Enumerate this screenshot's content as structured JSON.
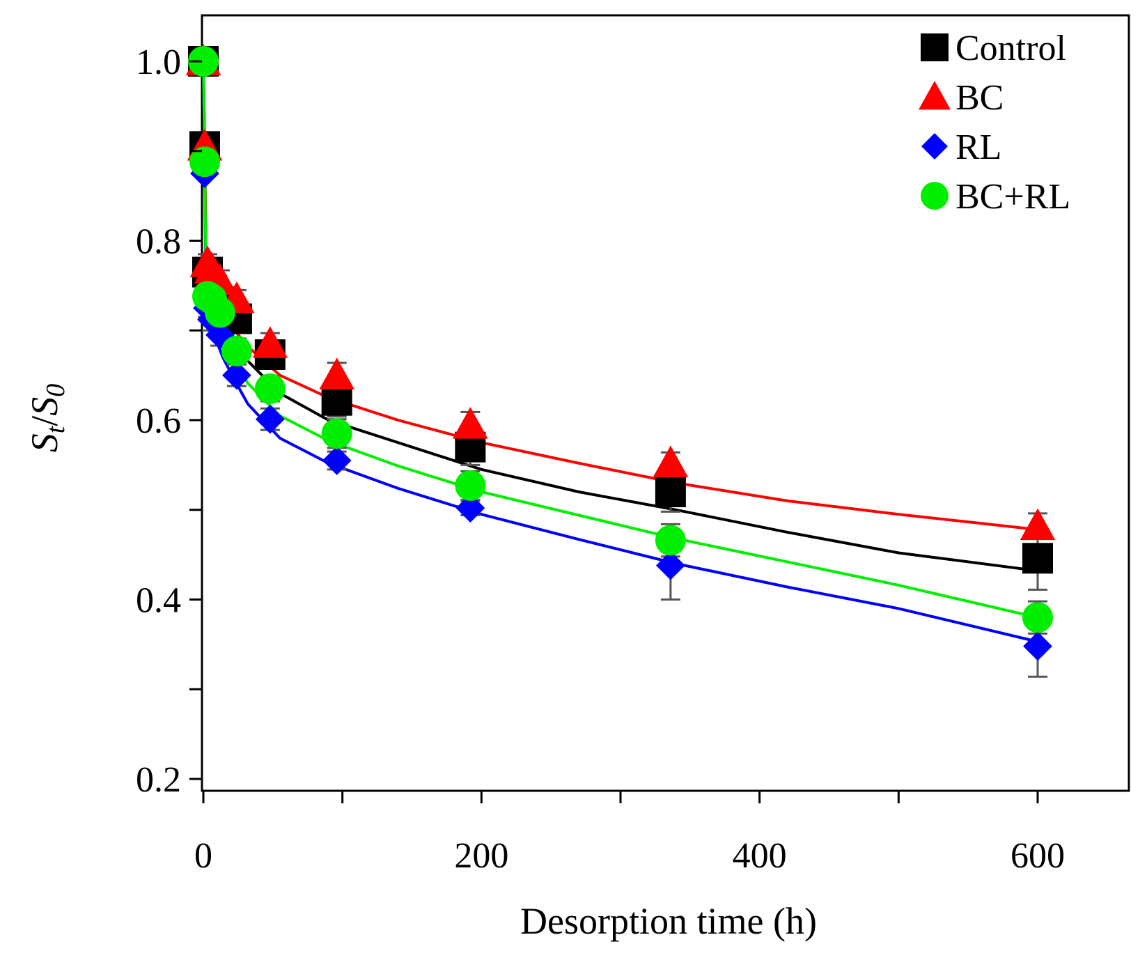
{
  "chart_data": {
    "type": "scatter",
    "xlabel": "Desorption time (h)",
    "ylabel_parts": {
      "main1": "S",
      "sub1": "t",
      "slash": "/",
      "main2": "S",
      "sub2": "0"
    },
    "xlim": [
      0,
      640
    ],
    "ylim": [
      0.2,
      1.0
    ],
    "x_ticks": [
      {
        "value": 0,
        "label": "0"
      },
      {
        "value": 200,
        "label": "200"
      },
      {
        "value": 400,
        "label": "400"
      },
      {
        "value": 600,
        "label": "600"
      }
    ],
    "x_minor_ticks": [
      100,
      300,
      500
    ],
    "y_ticks": [
      {
        "value": 0.2,
        "label": "0.2"
      },
      {
        "value": 0.4,
        "label": "0.4"
      },
      {
        "value": 0.6,
        "label": "0.6"
      },
      {
        "value": 0.8,
        "label": "0.8"
      },
      {
        "value": 1.0,
        "label": "1.0"
      }
    ],
    "y_minor_ticks": [
      0.3,
      0.5,
      0.7,
      0.9
    ],
    "grid": false,
    "legend_position": "top-right",
    "x": [
      0,
      1,
      3,
      6,
      12,
      24,
      48,
      96,
      192,
      336,
      600
    ],
    "series": [
      {
        "name": "Control",
        "marker": "square",
        "color": "#000000",
        "values": [
          1.0,
          0.905,
          0.765,
          0.745,
          0.732,
          0.713,
          0.673,
          0.622,
          0.57,
          0.52,
          0.446
        ],
        "errors": [
          0,
          0,
          0.01,
          0.012,
          0.012,
          0.014,
          0.014,
          0.018,
          0.02,
          0.022,
          0.035
        ],
        "fit": [
          0.75,
          0.737,
          0.722,
          0.706,
          0.686,
          0.666,
          0.63,
          0.6,
          0.575,
          0.545,
          0.52,
          0.5,
          0.475,
          0.452,
          0.432
        ]
      },
      {
        "name": "BC",
        "marker": "triangle",
        "color": "#ff0000",
        "values": [
          1.0,
          0.905,
          0.775,
          0.768,
          0.755,
          0.735,
          0.685,
          0.65,
          0.595,
          0.552,
          0.482
        ],
        "errors": [
          0,
          0,
          0.01,
          0.012,
          0.012,
          0.01,
          0.012,
          0.014,
          0.014,
          0.012,
          0.014
        ],
        "fit": [
          0.77,
          0.754,
          0.738,
          0.72,
          0.701,
          0.682,
          0.65,
          0.625,
          0.6,
          0.575,
          0.552,
          0.53,
          0.51,
          0.495,
          0.478
        ]
      },
      {
        "name": "RL",
        "marker": "diamond",
        "color": "#0000ff",
        "values": [
          1.0,
          0.875,
          0.725,
          0.712,
          0.695,
          0.65,
          0.601,
          0.555,
          0.502,
          0.438,
          0.348
        ],
        "errors": [
          0,
          0,
          0.01,
          0.012,
          0.012,
          0.012,
          0.012,
          0.01,
          0.008,
          0.038,
          0.034
        ],
        "fit": [
          0.72,
          0.705,
          0.69,
          0.67,
          0.646,
          0.618,
          0.58,
          0.552,
          0.524,
          0.495,
          0.467,
          0.44,
          0.414,
          0.39,
          0.353
        ]
      },
      {
        "name": "BC+RL",
        "marker": "circle",
        "color": "#00ee00",
        "values": [
          1.0,
          0.888,
          0.738,
          0.735,
          0.72,
          0.677,
          0.635,
          0.585,
          0.527,
          0.466,
          0.38
        ],
        "errors": [
          0,
          0,
          0.01,
          0.012,
          0.012,
          0.014,
          0.014,
          0.016,
          0.016,
          0.018,
          0.018
        ],
        "fit": [
          0.74,
          0.725,
          0.709,
          0.69,
          0.667,
          0.641,
          0.605,
          0.577,
          0.549,
          0.52,
          0.494,
          0.468,
          0.442,
          0.416,
          0.38
        ]
      }
    ],
    "fit_x": [
      2,
      5,
      9,
      14,
      22,
      32,
      55,
      90,
      140,
      200,
      270,
      340,
      420,
      500,
      600
    ]
  }
}
